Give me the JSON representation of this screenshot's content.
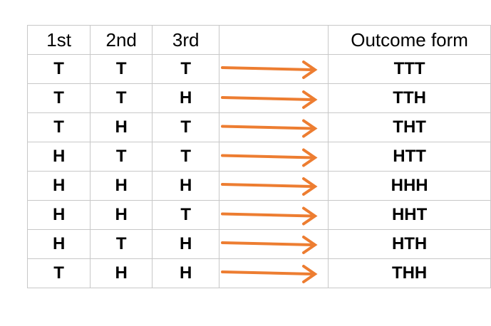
{
  "table": {
    "headers": [
      "1st",
      "2nd",
      "3rd",
      "",
      "Outcome form"
    ],
    "rows": [
      {
        "first": "T",
        "second": "T",
        "third": "T",
        "outcome": "TTT"
      },
      {
        "first": "T",
        "second": "T",
        "third": "H",
        "outcome": "TTH"
      },
      {
        "first": "T",
        "second": "H",
        "third": "T",
        "outcome": "THT"
      },
      {
        "first": "H",
        "second": "T",
        "third": "T",
        "outcome": "HTT"
      },
      {
        "first": "H",
        "second": "H",
        "third": "H",
        "outcome": "HHH"
      },
      {
        "first": "H",
        "second": "H",
        "third": "T",
        "outcome": "HHT"
      },
      {
        "first": "H",
        "second": "T",
        "third": "H",
        "outcome": "HTH"
      },
      {
        "first": "T",
        "second": "H",
        "third": "H",
        "outcome": "THH"
      }
    ]
  },
  "arrow_color": "#ed7d31",
  "border_color": "#c8c8c8"
}
